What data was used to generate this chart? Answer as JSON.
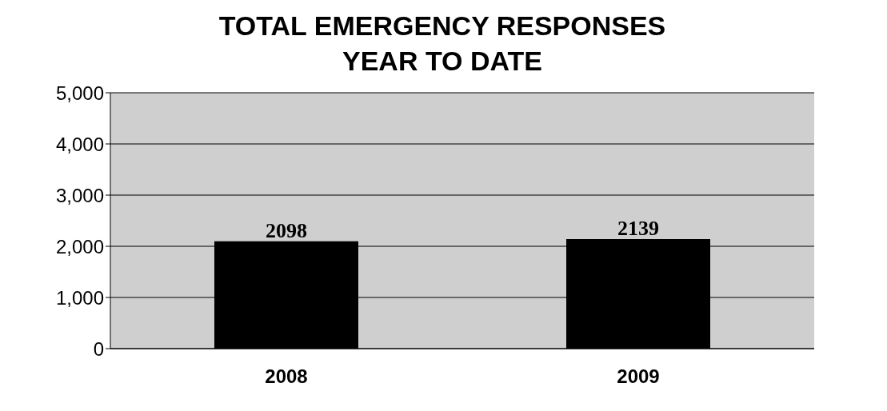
{
  "chart_data": {
    "type": "bar",
    "title": "TOTAL EMERGENCY RESPONSES\nYEAR TO DATE",
    "categories": [
      "2008",
      "2009"
    ],
    "values": [
      2098,
      2139
    ],
    "color": "#000000",
    "ylim": [
      0,
      5000
    ],
    "yticks": [
      {
        "value": 0,
        "label": "0"
      },
      {
        "value": 1000,
        "label": "1,000"
      },
      {
        "value": 2000,
        "label": "2,000"
      },
      {
        "value": 3000,
        "label": "3,000"
      },
      {
        "value": 4000,
        "label": "4,000"
      },
      {
        "value": 5000,
        "label": "5,000"
      }
    ],
    "grid": "y",
    "data_labels": true
  }
}
